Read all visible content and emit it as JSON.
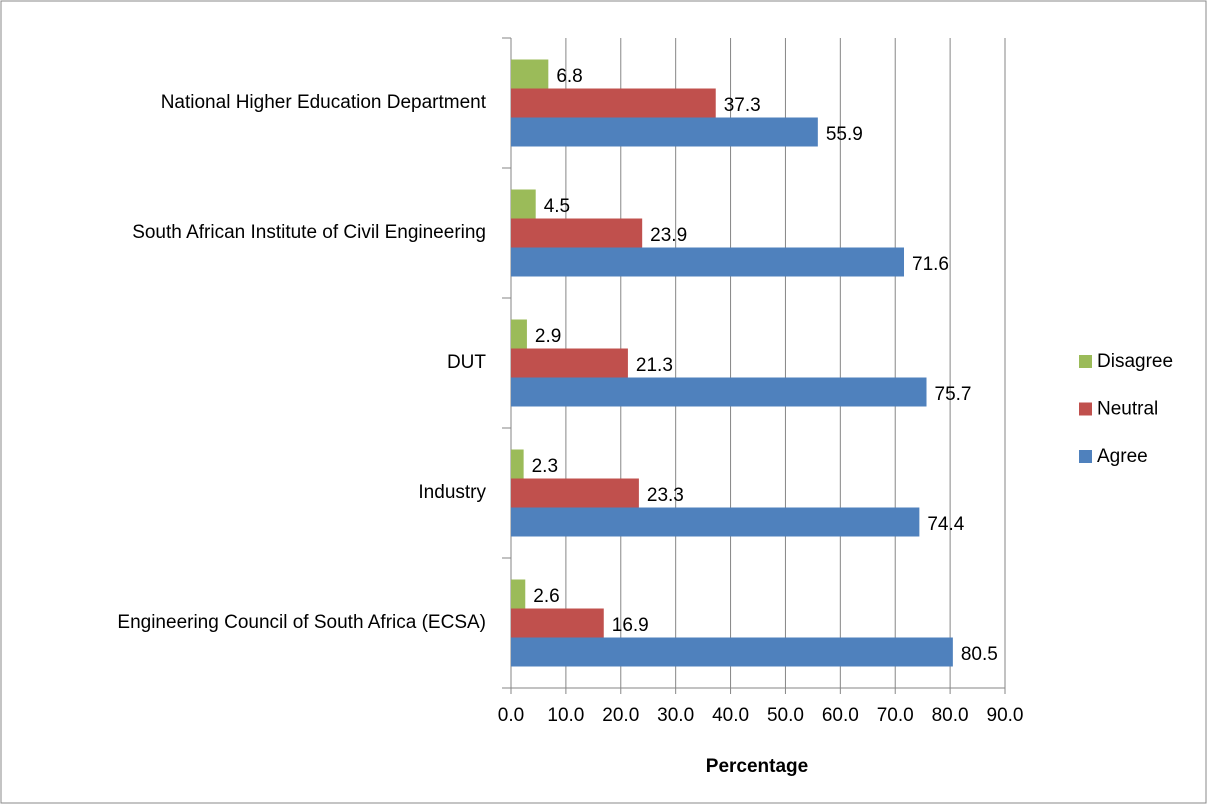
{
  "chart_data": {
    "type": "bar",
    "orientation": "horizontal",
    "x_label": "Percentage",
    "categories": [
      "National Higher Education Department",
      "South African Institute of Civil Engineering",
      "DUT",
      "Industry",
      "Engineering Council of South Africa (ECSA)"
    ],
    "series": [
      {
        "name": "Disagree",
        "color": "#9bbb59",
        "values": [
          6.8,
          4.5,
          2.9,
          2.3,
          2.6
        ]
      },
      {
        "name": "Neutral",
        "color": "#c0504d",
        "values": [
          37.3,
          23.9,
          21.3,
          23.3,
          16.9
        ]
      },
      {
        "name": "Agree",
        "color": "#4f81bd",
        "values": [
          55.9,
          71.6,
          75.7,
          74.4,
          80.5
        ]
      }
    ],
    "xlim": [
      0,
      90
    ],
    "xticks": [
      {
        "value": 0,
        "label": "0.0"
      },
      {
        "value": 10,
        "label": "10.0"
      },
      {
        "value": 20,
        "label": "20.0"
      },
      {
        "value": 30,
        "label": "30.0"
      },
      {
        "value": 40,
        "label": "40.0"
      },
      {
        "value": 50,
        "label": "50.0"
      },
      {
        "value": 60,
        "label": "60.0"
      },
      {
        "value": 70,
        "label": "70.0"
      },
      {
        "value": 80,
        "label": "80.0"
      },
      {
        "value": 90,
        "label": "90.0"
      }
    ],
    "grid": true,
    "legend": "right"
  }
}
